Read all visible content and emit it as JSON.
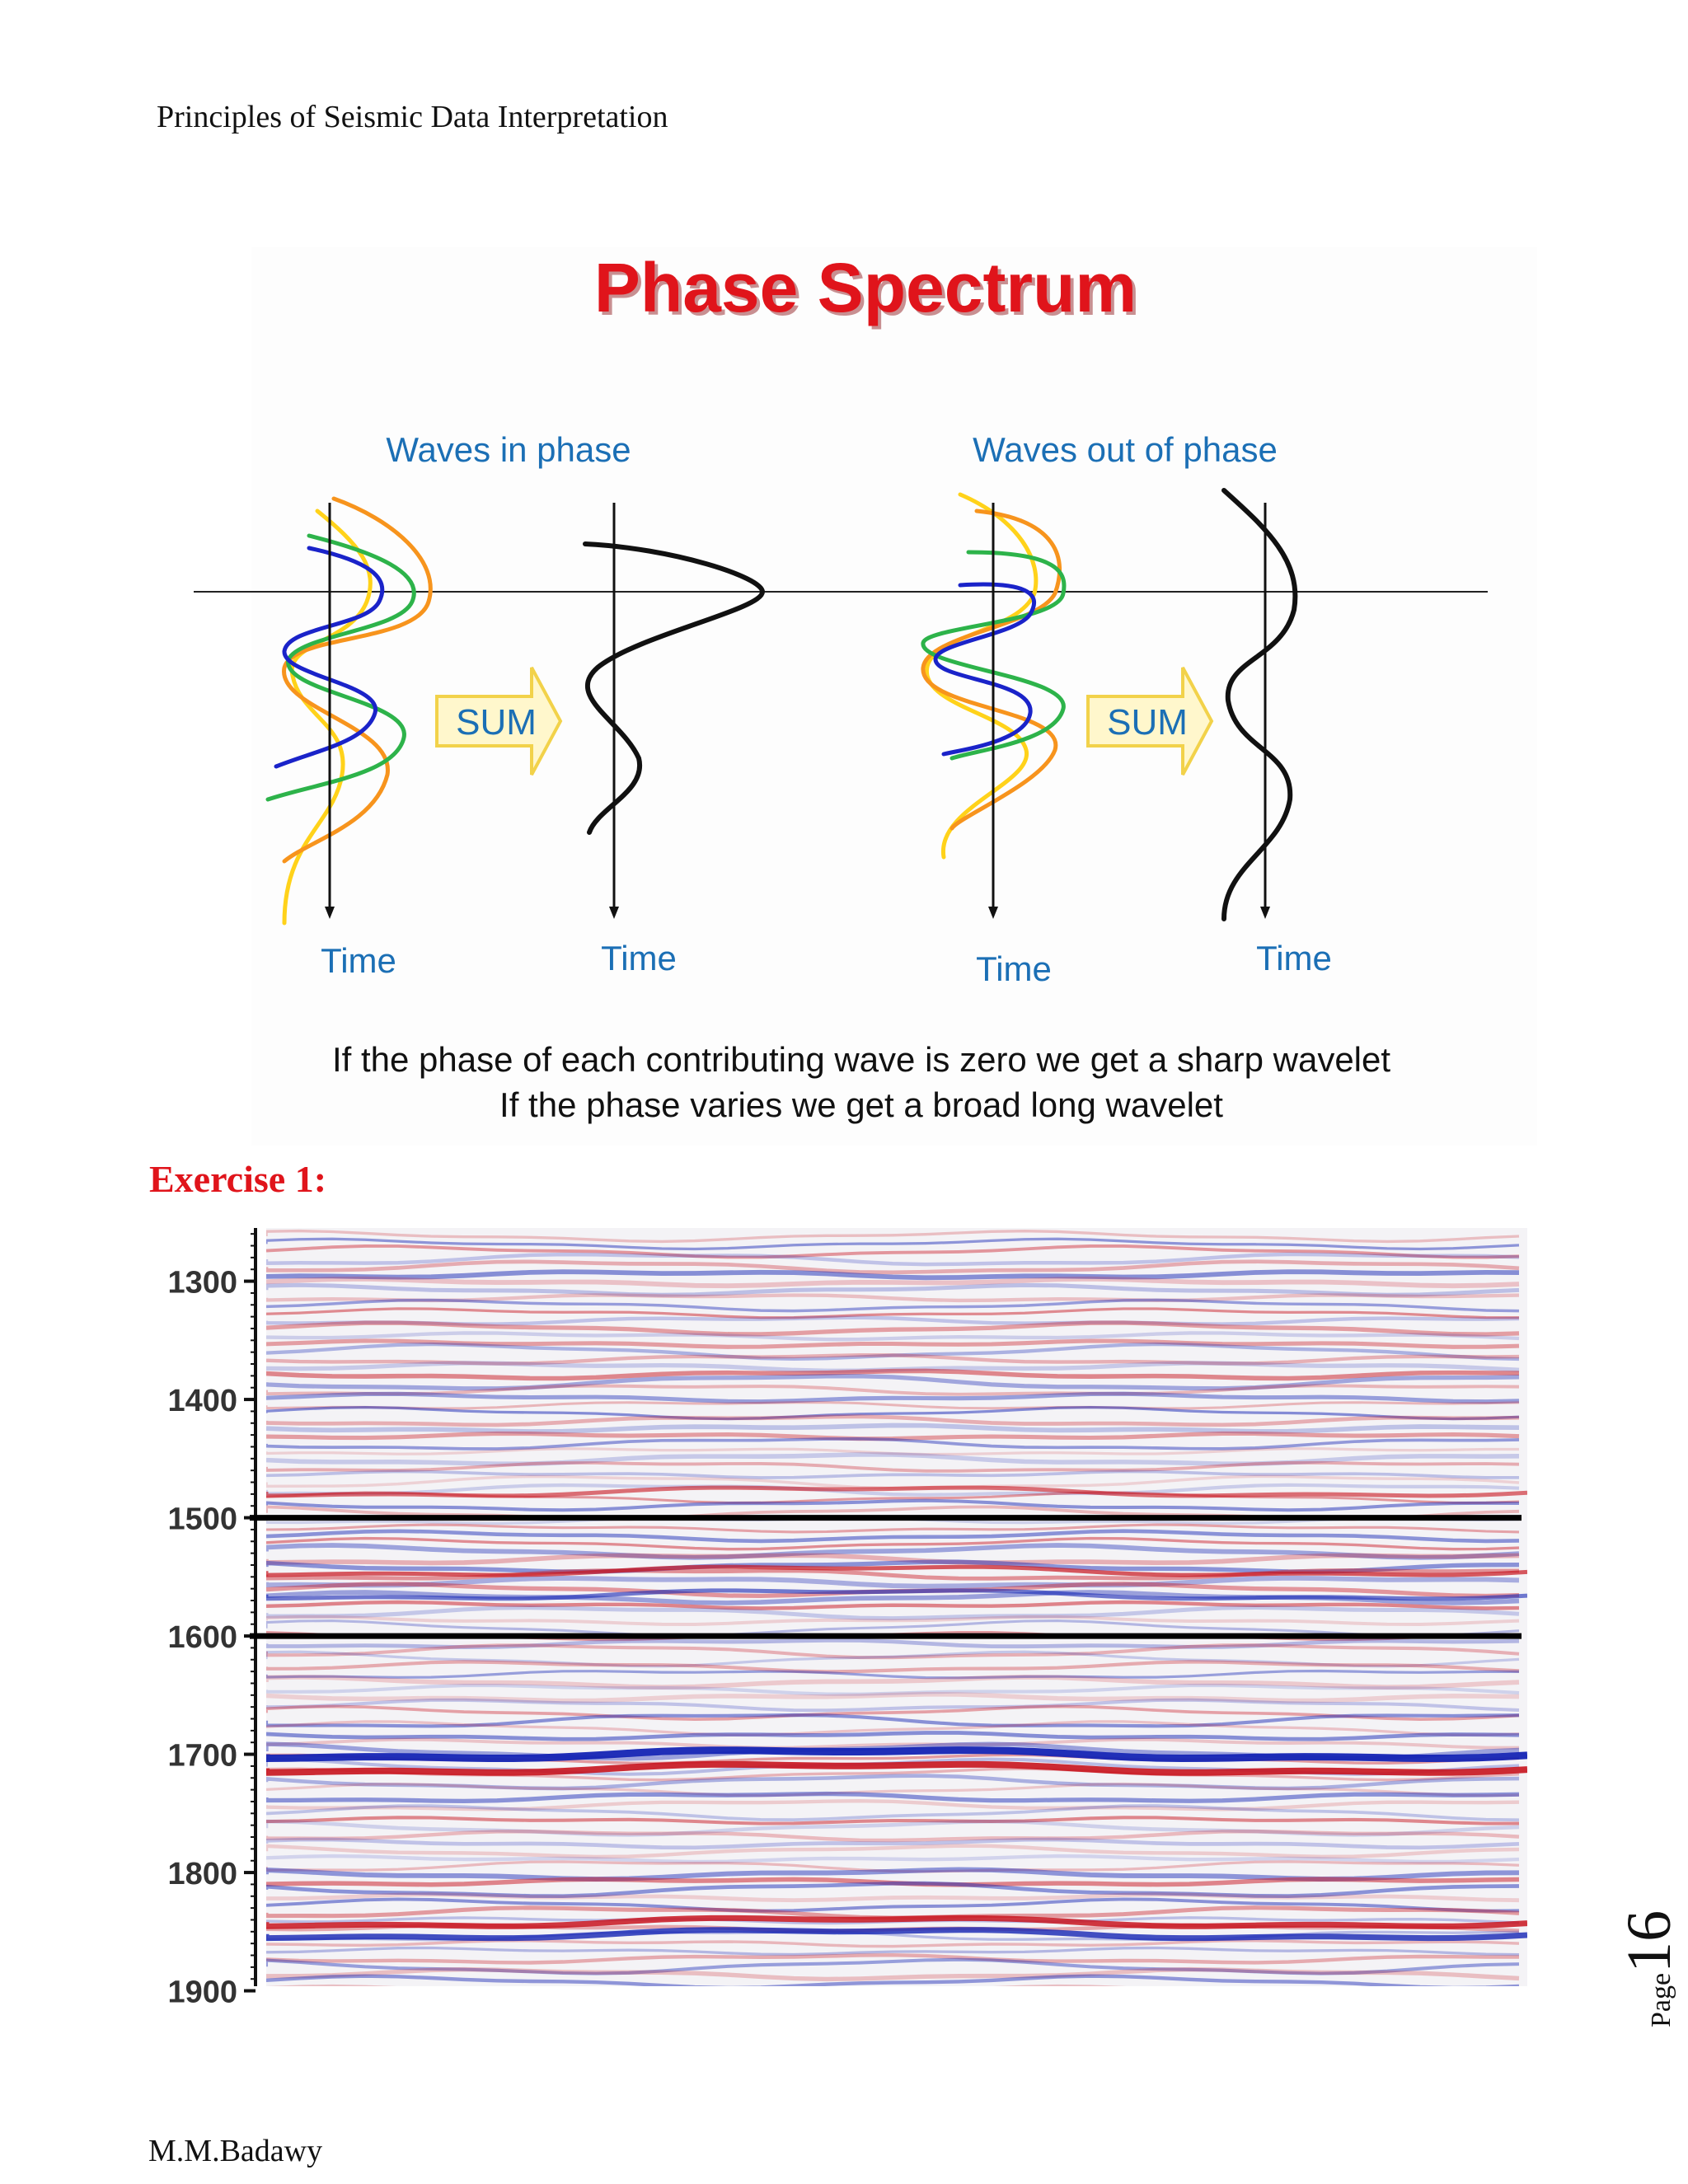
{
  "header": {
    "running_title": "Principles of Seismic Data Interpretation"
  },
  "figure": {
    "title": "Phase Spectrum",
    "panel_left": {
      "caption": "Waves in phase",
      "sum_label": "SUM",
      "axis_labels": [
        "Time",
        "Time"
      ]
    },
    "panel_right": {
      "caption": "Waves out of phase",
      "sum_label": "SUM",
      "axis_labels": [
        "Time",
        "Time"
      ]
    },
    "explanation": [
      "If the phase of each contributing wave is zero we get a sharp wavelet",
      "If the phase varies we get a broad long wavelet"
    ],
    "colors": {
      "title": "#e0141b",
      "caption": "#1b6fb5",
      "yellow": "#ffd21a",
      "orange": "#f7941d",
      "green": "#2db34a",
      "blue": "#1a23c9",
      "sum_arrow_fill": "#fff7cc",
      "sum_arrow_stroke": "#f2d24a"
    }
  },
  "exercise": {
    "heading": "Exercise 1:"
  },
  "seismic_section": {
    "time_axis_ticks": [
      "1300",
      "1400",
      "1500",
      "1600",
      "1700",
      "1800",
      "1900"
    ],
    "horizon_times": [
      1500,
      1600
    ],
    "colors": {
      "positive": "#c8141e",
      "negative": "#1424b4",
      "horizon": "#000000"
    }
  },
  "footer": {
    "author": "M.M.Badawy",
    "page_label": "Page",
    "page_number": "16"
  }
}
